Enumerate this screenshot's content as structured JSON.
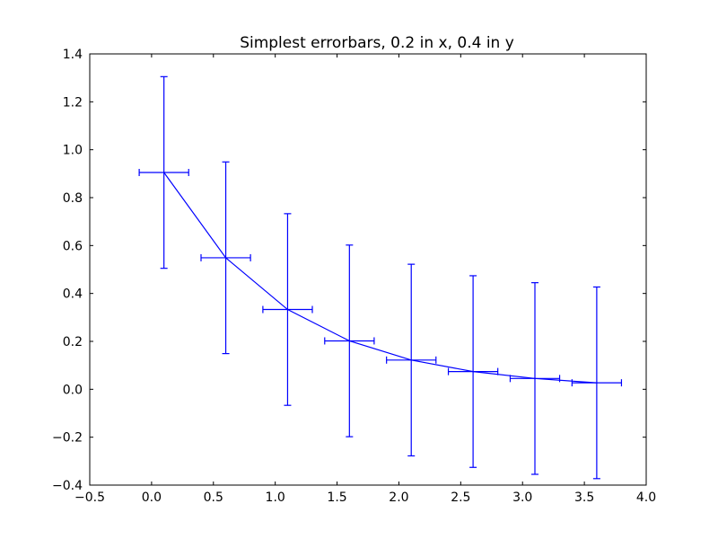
{
  "chart_data": {
    "type": "line",
    "title": "Simplest errorbars, 0.2 in x, 0.4 in y",
    "xlabel": "",
    "ylabel": "",
    "xlim": [
      -0.5,
      4.0
    ],
    "ylim": [
      -0.4,
      1.4
    ],
    "x_ticks": [
      -0.5,
      0.0,
      0.5,
      1.0,
      1.5,
      2.0,
      2.5,
      3.0,
      3.5,
      4.0
    ],
    "y_ticks": [
      -0.4,
      -0.2,
      0.0,
      0.2,
      0.4,
      0.6,
      0.8,
      1.0,
      1.2,
      1.4
    ],
    "x_tick_labels": [
      "−0.5",
      "0.0",
      "0.5",
      "1.0",
      "1.5",
      "2.0",
      "2.5",
      "3.0",
      "3.5",
      "4.0"
    ],
    "y_tick_labels": [
      "−0.4",
      "−0.2",
      "0.0",
      "0.2",
      "0.4",
      "0.6",
      "0.8",
      "1.0",
      "1.2",
      "1.4"
    ],
    "grid": false,
    "color": "#0000ff",
    "series": [
      {
        "x": [
          0.1,
          0.6,
          1.1,
          1.6,
          2.1,
          2.6,
          3.1,
          3.6
        ],
        "y": [
          0.905,
          0.549,
          0.333,
          0.202,
          0.122,
          0.074,
          0.045,
          0.027
        ],
        "xerr": 0.2,
        "yerr": 0.4
      }
    ]
  }
}
